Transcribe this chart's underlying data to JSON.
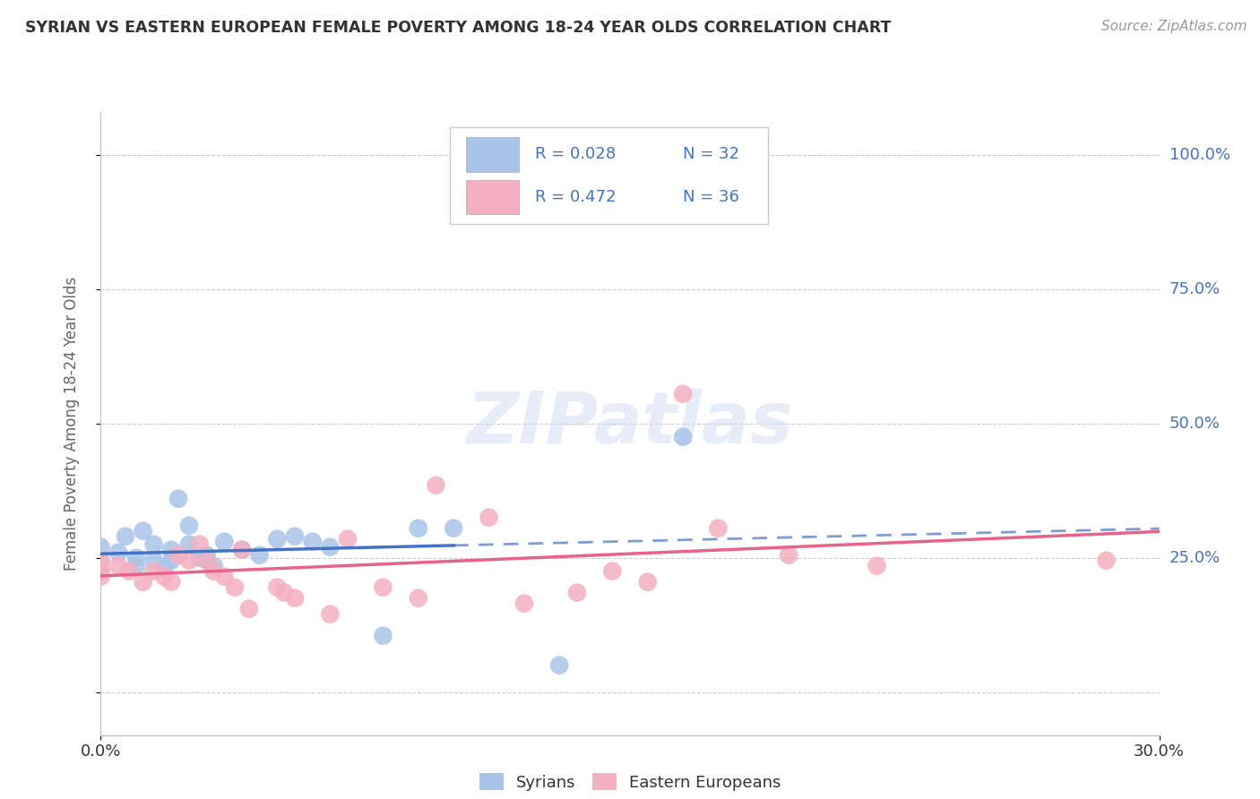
{
  "title": "SYRIAN VS EASTERN EUROPEAN FEMALE POVERTY AMONG 18-24 YEAR OLDS CORRELATION CHART",
  "source": "Source: ZipAtlas.com",
  "ylabel": "Female Poverty Among 18-24 Year Olds",
  "xlim": [
    0.0,
    0.3
  ],
  "ylim": [
    -0.08,
    1.08
  ],
  "yticks": [
    0.0,
    0.25,
    0.5,
    0.75,
    1.0
  ],
  "ytick_labels": [
    "",
    "25.0%",
    "50.0%",
    "75.0%",
    "100.0%"
  ],
  "legend_r_syrians": "R = 0.028",
  "legend_n_syrians": "N = 32",
  "legend_r_eastern": "R = 0.472",
  "legend_n_eastern": "N = 36",
  "syrians_color": "#a8c4e8",
  "eastern_color": "#f4afc0",
  "syrians_line_color": "#4472c4",
  "eastern_line_color": "#e8638a",
  "watermark": "ZIPatlas",
  "syrians_x": [
    0.0,
    0.0,
    0.0,
    0.005,
    0.007,
    0.01,
    0.01,
    0.012,
    0.015,
    0.015,
    0.018,
    0.02,
    0.02,
    0.022,
    0.025,
    0.025,
    0.028,
    0.03,
    0.03,
    0.032,
    0.035,
    0.04,
    0.045,
    0.05,
    0.055,
    0.06,
    0.065,
    0.08,
    0.09,
    0.1,
    0.13,
    0.165
  ],
  "syrians_y": [
    0.27,
    0.245,
    0.225,
    0.26,
    0.29,
    0.25,
    0.235,
    0.3,
    0.275,
    0.245,
    0.23,
    0.265,
    0.245,
    0.36,
    0.31,
    0.275,
    0.25,
    0.255,
    0.245,
    0.235,
    0.28,
    0.265,
    0.255,
    0.285,
    0.29,
    0.28,
    0.27,
    0.105,
    0.305,
    0.305,
    0.05,
    0.475
  ],
  "eastern_x": [
    0.0,
    0.0,
    0.0,
    0.005,
    0.008,
    0.012,
    0.015,
    0.018,
    0.02,
    0.022,
    0.025,
    0.028,
    0.03,
    0.032,
    0.035,
    0.038,
    0.04,
    0.042,
    0.05,
    0.052,
    0.055,
    0.065,
    0.07,
    0.08,
    0.09,
    0.095,
    0.11,
    0.12,
    0.135,
    0.145,
    0.155,
    0.165,
    0.175,
    0.195,
    0.22,
    0.285
  ],
  "eastern_y": [
    0.225,
    0.245,
    0.215,
    0.235,
    0.225,
    0.205,
    0.225,
    0.215,
    0.205,
    0.255,
    0.245,
    0.275,
    0.245,
    0.225,
    0.215,
    0.195,
    0.265,
    0.155,
    0.195,
    0.185,
    0.175,
    0.145,
    0.285,
    0.195,
    0.175,
    0.385,
    0.325,
    0.165,
    0.185,
    0.225,
    0.205,
    0.555,
    0.305,
    0.255,
    0.235,
    0.245
  ],
  "background_color": "#ffffff",
  "grid_color": "#cccccc"
}
